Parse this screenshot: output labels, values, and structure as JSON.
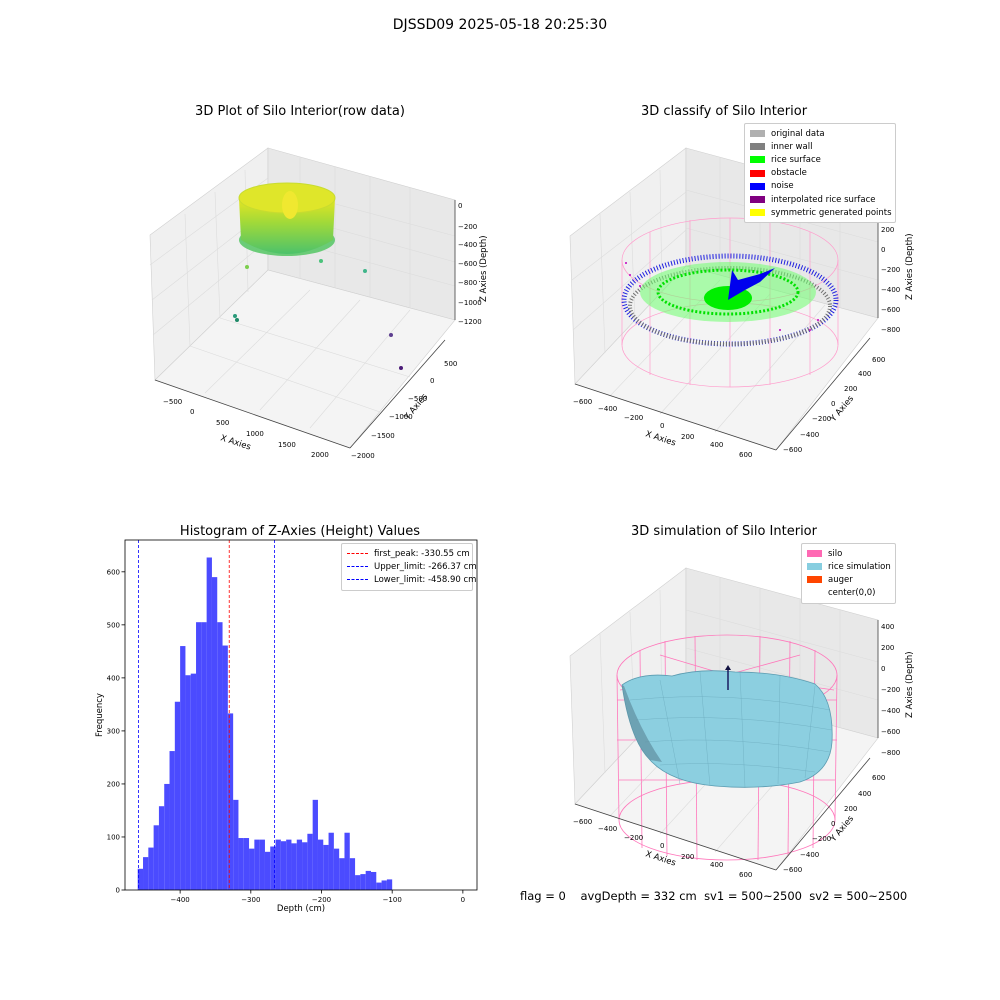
{
  "suptitle": "DJSSD09 2025-05-18 20:25:30",
  "footer": {
    "flag": "flag = 0",
    "avg_depth": "avgDepth = 332 cm",
    "sv1": "sv1 = 500~2500",
    "sv2": "sv2 = 500~2500"
  },
  "chart_data": [
    {
      "type": "scatter3d",
      "title": "3D Plot of Silo Interior(row data)",
      "xlabel": "X Axies",
      "ylabel": "Y Axies",
      "zlabel": "Z Axies (Depth)",
      "xticks": [
        "−500",
        "0",
        "500",
        "1000",
        "1500",
        "2000"
      ],
      "yticks": [
        "500",
        "0",
        "−500",
        "−1000",
        "−1500",
        "−2000"
      ],
      "zticks": [
        "0",
        "−200",
        "−400",
        "−600",
        "−800",
        "−1000",
        "−1200"
      ],
      "colormap": "viridis",
      "note_outliers": 7
    },
    {
      "type": "scatter3d",
      "title": "3D classify of Silo Interior",
      "xlabel": "X Axies",
      "ylabel": "Y Axies",
      "zlabel": "Z Axies (Depth)",
      "xticks": [
        "−600",
        "−400",
        "−200",
        "0",
        "200",
        "400",
        "600"
      ],
      "yticks": [
        "600",
        "400",
        "200",
        "0",
        "−200",
        "−400",
        "−600"
      ],
      "zticks": [
        "400",
        "200",
        "0",
        "−200",
        "−400",
        "−600",
        "−800"
      ],
      "legend": [
        {
          "label": "original data",
          "color": "#b0b0b0"
        },
        {
          "label": "inner wall",
          "color": "#808080"
        },
        {
          "label": "rice surface",
          "color": "#00ff00"
        },
        {
          "label": "obstacle",
          "color": "#ff0000"
        },
        {
          "label": "noise",
          "color": "#0000ff"
        },
        {
          "label": "interpolated rice surface",
          "color": "#800080"
        },
        {
          "label": "symmetric generated points",
          "color": "#ffff00"
        }
      ]
    },
    {
      "type": "bar",
      "title": "Histogram of Z-Axies (Height) Values",
      "xlabel": "Depth (cm)",
      "ylabel": "Frequency",
      "bar_color": "#4b4bff",
      "bin_start": -460,
      "bin_width": 7.5,
      "values": [
        40,
        62,
        80,
        122,
        158,
        200,
        262,
        355,
        460,
        405,
        408,
        505,
        505,
        627,
        590,
        505,
        461,
        333,
        170,
        98,
        98,
        78,
        95,
        95,
        72,
        82,
        95,
        92,
        95,
        88,
        95,
        90,
        106,
        170,
        95,
        85,
        108,
        78,
        60,
        108,
        60,
        28,
        30,
        36,
        34,
        14,
        18,
        20
      ],
      "xlim": [
        -478,
        20
      ],
      "ylim": [
        0,
        660
      ],
      "xticks": [
        -400,
        -300,
        -200,
        -100,
        0
      ],
      "xtick_labels": [
        "−400",
        "−300",
        "−200",
        "−100",
        "0"
      ],
      "yticks": [
        0,
        100,
        200,
        300,
        400,
        500,
        600
      ],
      "vlines": [
        {
          "x": -330.55,
          "color": "#ff0000",
          "label": "first_peak: -330.55 cm"
        },
        {
          "x": -266.37,
          "color": "#0000ff",
          "label": "Upper_limit: -266.37 cm"
        },
        {
          "x": -458.9,
          "color": "#0000ff",
          "label": "Lower_limit: -458.90 cm"
        }
      ],
      "legend_loc": "upper right"
    },
    {
      "type": "surface3d",
      "title": "3D simulation of Silo Interior",
      "xlabel": "X Axies",
      "ylabel": "Y Axies",
      "zlabel": "Z Axies (Depth)",
      "xticks": [
        "−600",
        "−400",
        "−200",
        "0",
        "200",
        "400",
        "600"
      ],
      "yticks": [
        "600",
        "400",
        "200",
        "0",
        "−200",
        "−400",
        "−600"
      ],
      "zticks": [
        "400",
        "200",
        "0",
        "−200",
        "−400",
        "−600",
        "−800"
      ],
      "legend": [
        {
          "label": "silo",
          "color": "#ff69b4"
        },
        {
          "label": "rice simulation",
          "color": "#87cee0"
        },
        {
          "label": "auger",
          "color": "#ff4500"
        },
        {
          "label": "center(0,0)",
          "color": ""
        }
      ]
    }
  ]
}
